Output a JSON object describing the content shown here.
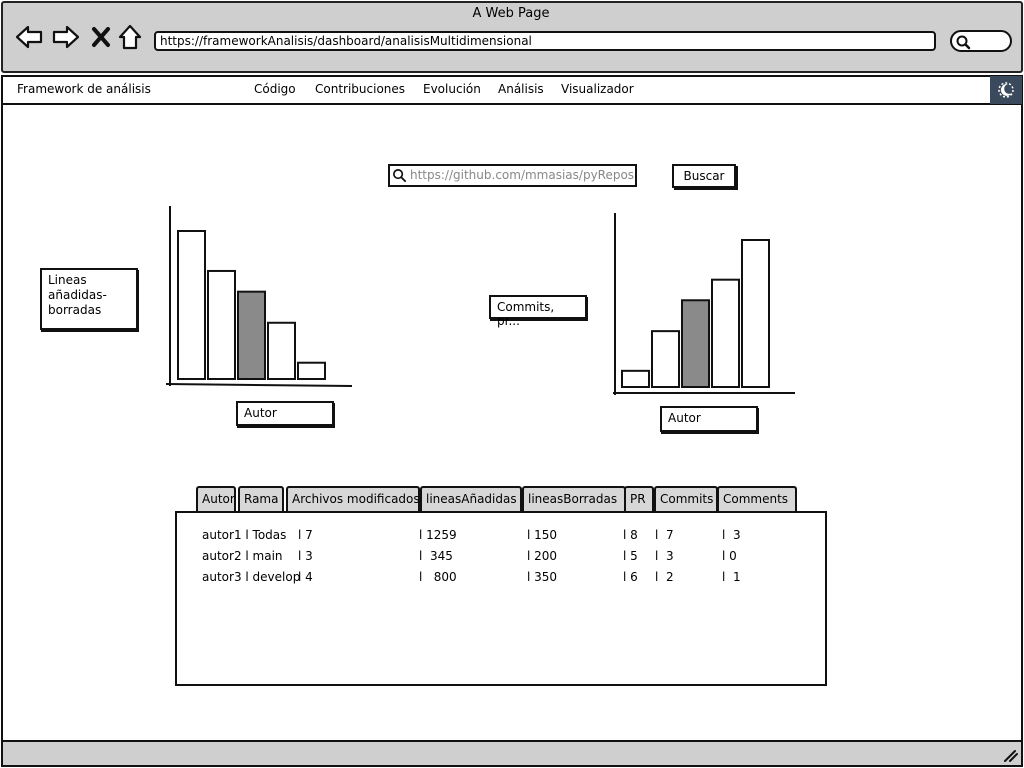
{
  "window": {
    "title": "A Web Page",
    "url": "https://frameworkAnalisis/dashboard/analisisMultidimensional"
  },
  "icons": {
    "back": "back-arrow-icon",
    "forward": "forward-arrow-icon",
    "stop": "close-icon",
    "home": "home-icon",
    "search": "search-icon",
    "theme": "moon-icon",
    "resize": "resize-grip-icon"
  },
  "navbar": {
    "brand": "Framework de análisis",
    "links": [
      "Código",
      "Contribuciones",
      "Evolución",
      "Análisis",
      "Visualizador"
    ]
  },
  "repo_search": {
    "placeholder": "https://github.com/mmasias/pyReposU",
    "button": "Buscar"
  },
  "charts": {
    "left": {
      "y_label": "Lineas añadidas-borradas",
      "x_label": "Autor"
    },
    "right": {
      "y_label": "Commits, pr...",
      "x_label": "Autor"
    }
  },
  "chart_data": [
    {
      "type": "bar",
      "values": [
        100,
        73,
        59,
        38,
        11
      ],
      "highlight_index": 2,
      "highlight_color": "#8a8a8a",
      "ylim": [
        0,
        100
      ]
    },
    {
      "type": "bar",
      "values": [
        11,
        38,
        59,
        73,
        100
      ],
      "highlight_index": 2,
      "highlight_color": "#8a8a8a",
      "ylim": [
        0,
        100
      ]
    }
  ],
  "table": {
    "tabs": [
      "Autor",
      "Rama",
      "Archivos modificados",
      "lineasAñadidas",
      "lineasBorradas",
      "PR",
      "Commits",
      "Comments"
    ],
    "rows": [
      [
        "autor1 l Todas",
        "l 7",
        "l 1259",
        "l 150",
        "l 8",
        "l  7",
        "l  3"
      ],
      [
        "autor2 l main",
        "l 3",
        "l  345",
        "l 200",
        "l 5",
        "l  3",
        "l 0"
      ],
      [
        "autor3 l develop",
        "l 4",
        "l   800",
        "l 350",
        "l 6",
        "l  2",
        "l  1"
      ]
    ]
  }
}
